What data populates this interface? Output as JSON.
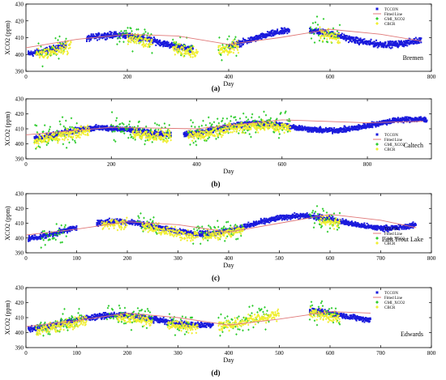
{
  "chart_data": [
    {
      "type": "scatter",
      "panel_label": "(a)",
      "site": "Bremen",
      "xlabel": "Day",
      "ylabel": "XCO2 (ppm)",
      "xlim": [
        0,
        800
      ],
      "ylim": [
        390,
        430
      ],
      "xticks": [
        0,
        200,
        400,
        600,
        800
      ],
      "yticks": [
        390,
        400,
        410,
        420,
        430
      ],
      "legend_position": "top-right",
      "series": [
        {
          "name": "TCCON",
          "color": "#1a1adc",
          "marker": "square",
          "segments": [
            [
              5,
              80
            ],
            [
              120,
              330
            ],
            [
              400,
              520
            ],
            [
              560,
              780
            ]
          ],
          "fit": {
            "mean": 408,
            "amp": 5,
            "trend": 0.008
          }
        },
        {
          "name": "Fitted Line",
          "color": "#e07878",
          "marker": "line",
          "x": [
            0,
            100,
            200,
            300,
            400,
            500,
            600,
            700,
            780
          ],
          "y": [
            404,
            409,
            412,
            411,
            406,
            410,
            415,
            412,
            408
          ]
        },
        {
          "name": "GMI_XCO2",
          "color": "#2ecc2e",
          "marker": "diamond",
          "segments": [
            [
              20,
              80
            ],
            [
              180,
              250
            ],
            [
              290,
              330
            ],
            [
              380,
              420
            ],
            [
              560,
              620
            ]
          ],
          "spread": 8
        },
        {
          "name": "CBCR",
          "color": "#f0ee30",
          "marker": "diamond",
          "segments": [
            [
              20,
              90
            ],
            [
              200,
              250
            ],
            [
              290,
              340
            ],
            [
              380,
              420
            ],
            [
              580,
              620
            ]
          ],
          "spread": 4
        }
      ]
    },
    {
      "type": "scatter",
      "panel_label": "(b)",
      "site": "Caltech",
      "xlabel": "Day",
      "ylabel": "XCO2 (ppm)",
      "xlim": [
        0,
        950
      ],
      "ylim": [
        390,
        430
      ],
      "xticks": [
        0,
        200,
        400,
        600,
        800
      ],
      "yticks": [
        390,
        400,
        410,
        420,
        430
      ],
      "legend_position": "bottom-right",
      "series": [
        {
          "name": "TCCON",
          "color": "#1a1adc",
          "marker": "square",
          "segments": [
            [
              20,
              340
            ],
            [
              370,
              940
            ]
          ],
          "fit": {
            "mean": 409,
            "amp": 3,
            "trend": 0.008
          }
        },
        {
          "name": "Fitted Line",
          "color": "#e07878",
          "marker": "line",
          "x": [
            0,
            200,
            400,
            600,
            800,
            930
          ],
          "y": [
            406,
            411,
            410,
            416,
            414,
            415
          ]
        },
        {
          "name": "GMI_XCO2",
          "color": "#2ecc2e",
          "marker": "diamond",
          "segments": [
            [
              20,
              120
            ],
            [
              200,
              340
            ],
            [
              380,
              620
            ]
          ],
          "spread": 9
        },
        {
          "name": "CBCR",
          "color": "#f0ee30",
          "marker": "diamond",
          "segments": [
            [
              20,
              150
            ],
            [
              250,
              340
            ],
            [
              380,
              620
            ]
          ],
          "spread": 4
        }
      ]
    },
    {
      "type": "scatter",
      "panel_label": "(c)",
      "site": "East Trout Lake",
      "xlabel": "Day",
      "ylabel": "XCO2 (ppm)",
      "xlim": [
        0,
        800
      ],
      "ylim": [
        390,
        430
      ],
      "xticks": [
        0,
        100,
        200,
        300,
        400,
        500,
        600,
        700,
        800
      ],
      "yticks": [
        390,
        400,
        410,
        420,
        430
      ],
      "legend_position": "bottom-right",
      "series": [
        {
          "name": "TCCON",
          "color": "#1a1adc",
          "marker": "square",
          "segments": [
            [
              5,
              100
            ],
            [
              140,
              770
            ]
          ],
          "fit": {
            "mean": 408,
            "amp": 5,
            "trend": 0.01
          }
        },
        {
          "name": "Fitted Line",
          "color": "#e07878",
          "marker": "line",
          "x": [
            0,
            100,
            200,
            300,
            400,
            500,
            600,
            700,
            770
          ],
          "y": [
            402,
            406,
            411,
            409,
            404,
            410,
            416,
            412,
            407
          ]
        },
        {
          "name": "GMI_XCO2",
          "color": "#2ecc2e",
          "marker": "diamond",
          "segments": [
            [
              30,
              80
            ],
            [
              220,
              260
            ],
            [
              330,
              430
            ],
            [
              560,
              620
            ]
          ],
          "spread": 9
        },
        {
          "name": "CBCR",
          "color": "#f0ee30",
          "marker": "diamond",
          "segments": [
            [
              150,
              200
            ],
            [
              230,
              340
            ],
            [
              350,
              430
            ],
            [
              580,
              620
            ]
          ],
          "spread": 4
        }
      ]
    },
    {
      "type": "scatter",
      "panel_label": "(d)",
      "site": "Edwards",
      "xlabel": "Day",
      "ylabel": "XCO2 (ppm)",
      "xlim": [
        0,
        800
      ],
      "ylim": [
        390,
        430
      ],
      "xticks": [
        0,
        100,
        200,
        300,
        400,
        500,
        600,
        700,
        800
      ],
      "yticks": [
        390,
        400,
        410,
        420,
        430
      ],
      "legend_position": "top-right",
      "series": [
        {
          "name": "TCCON",
          "color": "#1a1adc",
          "marker": "square",
          "segments": [
            [
              5,
              370
            ],
            [
              560,
              680
            ]
          ],
          "fit": {
            "mean": 409,
            "amp": 4,
            "trend": 0.008
          }
        },
        {
          "name": "Fitted Line",
          "color": "#e07878",
          "marker": "line",
          "x": [
            0,
            100,
            200,
            300,
            400,
            500,
            600,
            680
          ],
          "y": [
            404,
            408,
            413,
            410,
            405,
            409,
            414,
            413
          ]
        },
        {
          "name": "GMI_XCO2",
          "color": "#2ecc2e",
          "marker": "diamond",
          "segments": [
            [
              20,
              110
            ],
            [
              160,
              250
            ],
            [
              280,
              330
            ],
            [
              380,
              480
            ],
            [
              560,
              620
            ]
          ],
          "spread": 9
        },
        {
          "name": "CBCR",
          "color": "#f0ee30",
          "marker": "diamond",
          "segments": [
            [
              20,
              120
            ],
            [
              180,
              250
            ],
            [
              280,
              340
            ],
            [
              380,
              500
            ],
            [
              560,
              620
            ]
          ],
          "spread": 4
        }
      ]
    }
  ]
}
